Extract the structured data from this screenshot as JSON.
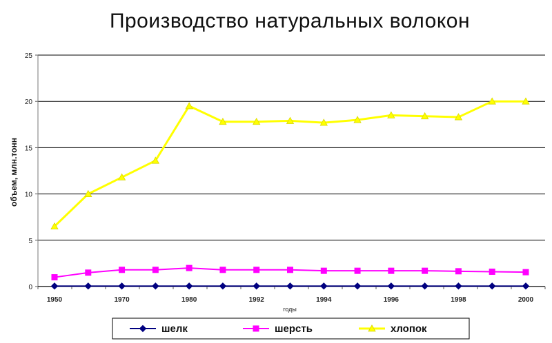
{
  "chart_data": {
    "type": "line",
    "title": "Производство натуральных волокон",
    "ylabel": "объем, млн.тонн",
    "xlabel": "годы",
    "ylim": [
      0,
      25
    ],
    "yticks": [
      "0",
      "5",
      "10",
      "15",
      "20",
      "25"
    ],
    "grid": true,
    "legend_position": "bottom",
    "x_tick_labels": [
      "1950",
      "1970",
      "1980",
      "1992",
      "1994",
      "1996",
      "1998",
      "2000"
    ],
    "series": [
      {
        "name": "шелк",
        "color": "#000080",
        "marker": "diamond",
        "values": [
          0.05,
          0.05,
          0.05,
          0.05,
          0.05,
          0.05,
          0.05,
          0.05,
          0.05,
          0.05,
          0.05,
          0.05,
          0.05,
          0.05,
          0.05
        ]
      },
      {
        "name": "шерсть",
        "color": "#ff00ff",
        "marker": "square",
        "values": [
          1.0,
          1.5,
          1.8,
          1.8,
          2.0,
          1.8,
          1.8,
          1.8,
          1.7,
          1.7,
          1.7,
          1.7,
          1.65,
          1.6,
          1.55
        ]
      },
      {
        "name": "хлопок",
        "color": "#ffff00",
        "marker": "triangle",
        "values": [
          6.5,
          10.0,
          11.8,
          13.6,
          19.5,
          17.8,
          17.8,
          17.9,
          17.7,
          18.0,
          18.5,
          18.4,
          18.3,
          20.0,
          20.0
        ]
      }
    ]
  }
}
